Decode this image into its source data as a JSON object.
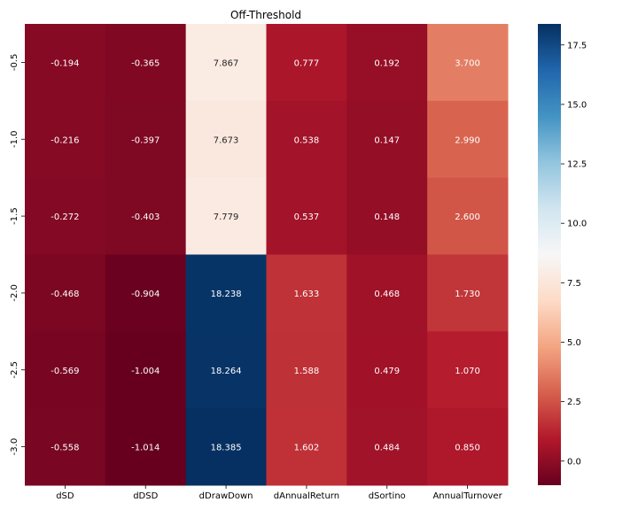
{
  "chart_data": {
    "type": "heatmap",
    "title": "Off-Threshold",
    "xlabel": "",
    "ylabel": "",
    "x_categories": [
      "dSD",
      "dDSD",
      "dDrawDown",
      "dAnnualReturn",
      "dSortino",
      "AnnualTurnover"
    ],
    "y_categories": [
      "-0.5",
      "-1.0",
      "-1.5",
      "-2.0",
      "-2.5",
      "-3.0"
    ],
    "values": [
      [
        -0.194,
        -0.365,
        7.867,
        0.777,
        0.192,
        3.7
      ],
      [
        -0.216,
        -0.397,
        7.673,
        0.538,
        0.147,
        2.99
      ],
      [
        -0.272,
        -0.403,
        7.779,
        0.537,
        0.148,
        2.6
      ],
      [
        -0.468,
        -0.904,
        18.238,
        1.633,
        0.468,
        1.73
      ],
      [
        -0.569,
        -1.004,
        18.264,
        1.588,
        0.479,
        1.07
      ],
      [
        -0.558,
        -1.014,
        18.385,
        1.602,
        0.484,
        0.85
      ]
    ],
    "value_labels": [
      [
        "-0.194",
        "-0.365",
        "7.867",
        "0.777",
        "0.192",
        "3.700"
      ],
      [
        "-0.216",
        "-0.397",
        "7.673",
        "0.538",
        "0.147",
        "2.990"
      ],
      [
        "-0.272",
        "-0.403",
        "7.779",
        "0.537",
        "0.148",
        "2.600"
      ],
      [
        "-0.468",
        "-0.904",
        "18.238",
        "1.633",
        "0.468",
        "1.730"
      ],
      [
        "-0.569",
        "-1.004",
        "18.264",
        "1.588",
        "0.479",
        "1.070"
      ],
      [
        "-0.558",
        "-1.014",
        "18.385",
        "1.602",
        "0.484",
        "0.850"
      ]
    ],
    "colormap": "RdBu",
    "vmin": -1.014,
    "vmax": 18.385,
    "colorbar": {
      "ticks": [
        0.0,
        2.5,
        5.0,
        7.5,
        10.0,
        12.5,
        15.0,
        17.5
      ],
      "tick_labels": [
        "0.0",
        "2.5",
        "5.0",
        "7.5",
        "10.0",
        "12.5",
        "15.0",
        "17.5"
      ]
    },
    "grid": false,
    "legend": "colorbar-right"
  }
}
